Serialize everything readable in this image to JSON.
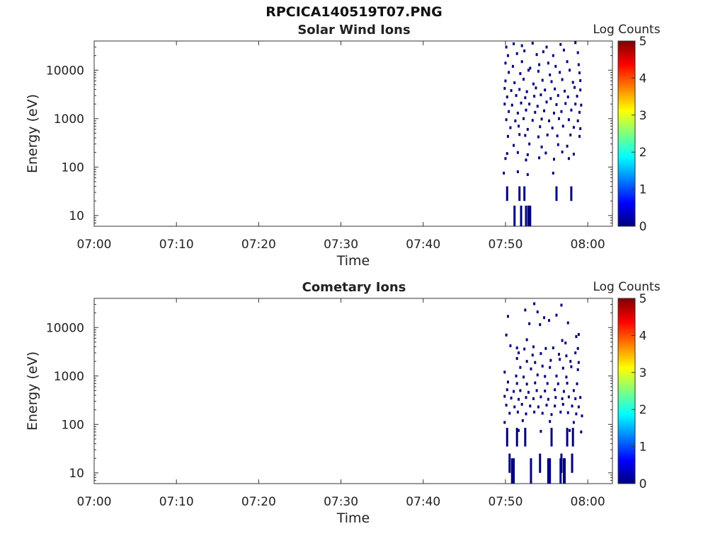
{
  "figure": {
    "title": "RPCICA140519T07.PNG"
  },
  "colorbar": {
    "label": "Log Counts",
    "ticks": [
      0,
      1,
      2,
      3,
      4,
      5
    ],
    "colormap": [
      "#00007f",
      "#0000ff",
      "#007fff",
      "#00ffff",
      "#7fff7f",
      "#ffff00",
      "#ff7f00",
      "#ff0000",
      "#7f0000"
    ]
  },
  "chart_data": [
    {
      "type": "heatmap",
      "title": "Solar Wind Ions",
      "xlabel": "Time",
      "ylabel": "Energy (eV)",
      "x_ticks": [
        "07:00",
        "07:10",
        "07:20",
        "07:30",
        "07:40",
        "07:50",
        "08:00"
      ],
      "x_range_minutes": [
        0,
        63
      ],
      "y_scale": "log",
      "y_range": [
        6,
        40000
      ],
      "y_ticks": [
        10,
        100,
        1000,
        10000
      ],
      "y_tick_labels": [
        "10",
        "100",
        "1000",
        "10000"
      ],
      "colorbar_label": "Log Counts",
      "color_range": [
        0,
        5
      ],
      "observed_level": 0,
      "data_time_range_minutes": [
        49.8,
        59.4
      ],
      "points": [
        [
          50.1,
          30000
        ],
        [
          51.0,
          35000
        ],
        [
          52.0,
          32000
        ],
        [
          53.3,
          36000
        ],
        [
          55.0,
          30000
        ],
        [
          56.7,
          34000
        ],
        [
          58.5,
          37000
        ],
        [
          50.3,
          20000
        ],
        [
          51.4,
          22000
        ],
        [
          52.3,
          25000
        ],
        [
          53.8,
          21000
        ],
        [
          54.6,
          24000
        ],
        [
          55.8,
          20000
        ],
        [
          57.1,
          26000
        ],
        [
          58.8,
          23000
        ],
        [
          50.0,
          14000
        ],
        [
          50.9,
          12000
        ],
        [
          52.0,
          15000
        ],
        [
          53.0,
          11000
        ],
        [
          54.1,
          13000
        ],
        [
          55.2,
          14000
        ],
        [
          56.1,
          12000
        ],
        [
          57.5,
          15000
        ],
        [
          58.9,
          13000
        ],
        [
          50.4,
          9000
        ],
        [
          51.8,
          8500
        ],
        [
          52.8,
          10000
        ],
        [
          54.0,
          9500
        ],
        [
          55.4,
          8000
        ],
        [
          56.6,
          9000
        ],
        [
          57.8,
          10000
        ],
        [
          59.0,
          8800
        ],
        [
          50.0,
          6000
        ],
        [
          51.1,
          5500
        ],
        [
          52.2,
          6500
        ],
        [
          53.4,
          5200
        ],
        [
          54.5,
          6200
        ],
        [
          55.6,
          5800
        ],
        [
          56.9,
          6400
        ],
        [
          58.2,
          5600
        ],
        [
          59.1,
          6100
        ],
        [
          49.9,
          4200
        ],
        [
          50.7,
          3800
        ],
        [
          51.7,
          4000
        ],
        [
          52.6,
          3600
        ],
        [
          53.7,
          4300
        ],
        [
          54.8,
          3900
        ],
        [
          56.0,
          4100
        ],
        [
          57.2,
          3700
        ],
        [
          58.4,
          4400
        ],
        [
          59.1,
          3900
        ],
        [
          50.2,
          2800
        ],
        [
          51.3,
          3000
        ],
        [
          52.4,
          2700
        ],
        [
          53.5,
          2900
        ],
        [
          54.3,
          3100
        ],
        [
          55.5,
          2600
        ],
        [
          56.4,
          3000
        ],
        [
          57.6,
          2800
        ],
        [
          58.7,
          2900
        ],
        [
          49.9,
          2000
        ],
        [
          50.8,
          1900
        ],
        [
          51.9,
          2100
        ],
        [
          52.9,
          2000
        ],
        [
          53.9,
          1800
        ],
        [
          55.0,
          2200
        ],
        [
          56.2,
          1950
        ],
        [
          57.3,
          2050
        ],
        [
          58.5,
          2000
        ],
        [
          59.2,
          1900
        ],
        [
          50.4,
          1400
        ],
        [
          51.5,
          1300
        ],
        [
          52.5,
          1500
        ],
        [
          53.6,
          1350
        ],
        [
          54.7,
          1450
        ],
        [
          55.9,
          1300
        ],
        [
          56.8,
          1400
        ],
        [
          58.0,
          1500
        ],
        [
          59.0,
          1350
        ],
        [
          50.1,
          950
        ],
        [
          51.2,
          900
        ],
        [
          52.2,
          1000
        ],
        [
          53.3,
          920
        ],
        [
          54.4,
          980
        ],
        [
          55.3,
          900
        ],
        [
          56.5,
          1000
        ],
        [
          57.7,
          950
        ],
        [
          58.8,
          900
        ],
        [
          50.6,
          650
        ],
        [
          51.6,
          700
        ],
        [
          52.7,
          600
        ],
        [
          54.2,
          680
        ],
        [
          55.7,
          640
        ],
        [
          57.0,
          700
        ],
        [
          58.3,
          660
        ],
        [
          59.1,
          620
        ],
        [
          50.3,
          430
        ],
        [
          51.7,
          470
        ],
        [
          52.4,
          450
        ],
        [
          54.0,
          420
        ],
        [
          55.1,
          460
        ],
        [
          56.3,
          440
        ],
        [
          57.9,
          460
        ],
        [
          59.0,
          430
        ],
        [
          51.0,
          280
        ],
        [
          52.9,
          300
        ],
        [
          54.4,
          260
        ],
        [
          56.4,
          290
        ],
        [
          57.5,
          270
        ],
        [
          50.2,
          190
        ],
        [
          51.5,
          200
        ],
        [
          52.7,
          180
        ],
        [
          54.9,
          195
        ],
        [
          56.9,
          205
        ],
        [
          58.3,
          185
        ],
        [
          50.0,
          150
        ],
        [
          52.5,
          140
        ],
        [
          54.1,
          155
        ],
        [
          55.9,
          145
        ],
        [
          57.7,
          150
        ],
        [
          49.8,
          75
        ],
        [
          51.5,
          80
        ],
        [
          52.7,
          70
        ],
        [
          55.8,
          75
        ]
      ],
      "columns": [
        [
          50.2,
          20,
          40
        ],
        [
          51.7,
          20,
          40
        ],
        [
          52.3,
          20,
          40
        ],
        [
          56.2,
          20,
          40
        ],
        [
          58.0,
          20,
          40
        ],
        [
          51.1,
          6,
          16
        ],
        [
          51.9,
          6,
          16
        ],
        [
          52.5,
          6,
          16
        ],
        [
          52.8,
          6,
          16
        ],
        [
          53.0,
          6,
          16
        ]
      ]
    },
    {
      "type": "heatmap",
      "title": "Cometary Ions",
      "xlabel": "Time",
      "ylabel": "Energy (eV)",
      "x_ticks": [
        "07:00",
        "07:10",
        "07:20",
        "07:30",
        "07:40",
        "07:50",
        "08:00"
      ],
      "x_range_minutes": [
        0,
        63
      ],
      "y_scale": "log",
      "y_range": [
        6,
        40000
      ],
      "y_ticks": [
        10,
        100,
        1000,
        10000
      ],
      "y_tick_labels": [
        "10",
        "100",
        "1000",
        "10000"
      ],
      "colorbar_label": "Log Counts",
      "color_range": [
        0,
        5
      ],
      "observed_level": 0,
      "data_time_range_minutes": [
        49.8,
        59.4
      ],
      "points": [
        [
          53.5,
          31000
        ],
        [
          56.8,
          29000
        ],
        [
          52.4,
          23000
        ],
        [
          53.9,
          21000
        ],
        [
          50.3,
          17000
        ],
        [
          54.7,
          16000
        ],
        [
          56.2,
          18000
        ],
        [
          55.3,
          14000
        ],
        [
          52.9,
          12000
        ],
        [
          54.2,
          11500
        ],
        [
          57.6,
          12500
        ],
        [
          50.1,
          7000
        ],
        [
          58.9,
          7200
        ],
        [
          58.6,
          6500
        ],
        [
          52.6,
          5600
        ],
        [
          56.9,
          5400
        ],
        [
          57.3,
          4800
        ],
        [
          50.6,
          4200
        ],
        [
          51.4,
          3800
        ],
        [
          52.3,
          3600
        ],
        [
          53.4,
          4000
        ],
        [
          54.9,
          3700
        ],
        [
          55.8,
          3800
        ],
        [
          58.8,
          3700
        ],
        [
          51.6,
          3000
        ],
        [
          53.3,
          2700
        ],
        [
          54.3,
          2900
        ],
        [
          56.5,
          2800
        ],
        [
          57.4,
          2600
        ],
        [
          58.5,
          3000
        ],
        [
          51.4,
          2300
        ],
        [
          52.6,
          2000
        ],
        [
          53.6,
          1900
        ],
        [
          55.5,
          2100
        ],
        [
          56.6,
          2200
        ],
        [
          57.9,
          2000
        ],
        [
          58.9,
          1900
        ],
        [
          51.8,
          1500
        ],
        [
          53.1,
          1400
        ],
        [
          54.5,
          1600
        ],
        [
          55.4,
          1500
        ],
        [
          57.0,
          1450
        ],
        [
          58.0,
          1550
        ],
        [
          58.8,
          1350
        ],
        [
          49.9,
          1200
        ],
        [
          51.3,
          1000
        ],
        [
          52.2,
          950
        ],
        [
          53.9,
          1050
        ],
        [
          54.8,
          980
        ],
        [
          56.2,
          1000
        ],
        [
          57.4,
          950
        ],
        [
          50.3,
          750
        ],
        [
          51.4,
          700
        ],
        [
          52.6,
          680
        ],
        [
          53.6,
          720
        ],
        [
          55.1,
          700
        ],
        [
          56.4,
          690
        ],
        [
          57.5,
          710
        ],
        [
          58.7,
          690
        ],
        [
          50.2,
          520
        ],
        [
          51.0,
          480
        ],
        [
          51.8,
          500
        ],
        [
          52.8,
          460
        ],
        [
          53.8,
          500
        ],
        [
          54.8,
          490
        ],
        [
          56.0,
          520
        ],
        [
          57.1,
          480
        ],
        [
          58.3,
          500
        ],
        [
          49.9,
          380
        ],
        [
          50.7,
          350
        ],
        [
          51.6,
          330
        ],
        [
          52.5,
          360
        ],
        [
          53.4,
          340
        ],
        [
          54.3,
          370
        ],
        [
          55.2,
          330
        ],
        [
          56.1,
          360
        ],
        [
          56.9,
          340
        ],
        [
          57.7,
          370
        ],
        [
          58.5,
          340
        ],
        [
          59.1,
          360
        ],
        [
          50.1,
          250
        ],
        [
          51.1,
          230
        ],
        [
          52.0,
          260
        ],
        [
          53.0,
          240
        ],
        [
          54.0,
          230
        ],
        [
          55.0,
          250
        ],
        [
          56.0,
          240
        ],
        [
          57.0,
          260
        ],
        [
          58.1,
          240
        ],
        [
          58.9,
          230
        ],
        [
          50.5,
          170
        ],
        [
          51.5,
          180
        ],
        [
          52.5,
          165
        ],
        [
          53.5,
          180
        ],
        [
          54.5,
          170
        ],
        [
          55.6,
          160
        ],
        [
          56.7,
          180
        ],
        [
          57.6,
          175
        ],
        [
          58.6,
          165
        ],
        [
          59.3,
          150
        ],
        [
          49.9,
          110
        ],
        [
          52.1,
          120
        ],
        [
          55.4,
          115
        ],
        [
          58.3,
          110
        ],
        [
          51.6,
          75
        ],
        [
          54.3,
          72
        ],
        [
          57.8,
          75
        ],
        [
          59.2,
          70
        ]
      ],
      "columns": [
        [
          50.2,
          35,
          85
        ],
        [
          51.4,
          35,
          85
        ],
        [
          52.4,
          35,
          85
        ],
        [
          55.6,
          35,
          85
        ],
        [
          57.5,
          35,
          85
        ],
        [
          58.2,
          35,
          85
        ],
        [
          50.5,
          10,
          25
        ],
        [
          54.2,
          10,
          25
        ],
        [
          56.8,
          10,
          25
        ],
        [
          58.1,
          10,
          25
        ],
        [
          50.8,
          6,
          20
        ],
        [
          51.0,
          6,
          20
        ],
        [
          53.1,
          6,
          20
        ],
        [
          55.2,
          6,
          20
        ],
        [
          55.4,
          6,
          20
        ],
        [
          56.7,
          6,
          20
        ],
        [
          57.1,
          6,
          20
        ],
        [
          57.2,
          6,
          20
        ]
      ]
    }
  ]
}
